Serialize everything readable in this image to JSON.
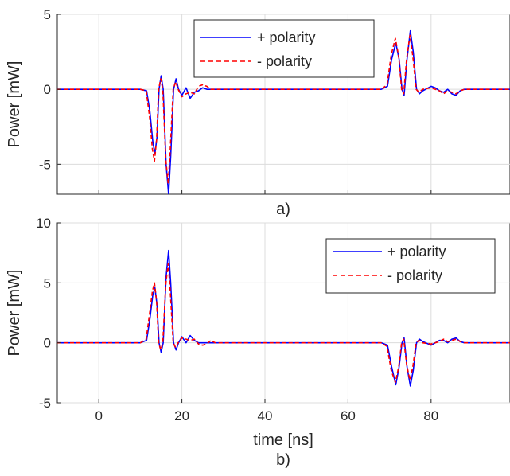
{
  "chart_data": [
    {
      "type": "line",
      "panel_label": "a)",
      "ylabel": "Power [mW]",
      "xlabel": "",
      "xlim": [
        -10,
        99
      ],
      "ylim": [
        -7,
        5
      ],
      "xticks": [
        0,
        20,
        40,
        60,
        80
      ],
      "yticks": [
        -5,
        0,
        5
      ],
      "grid": true,
      "legend": "top-center",
      "series": [
        {
          "name": "+ polarity",
          "color": "#0000ff",
          "style": "solid",
          "points": [
            [
              -10,
              0
            ],
            [
              10,
              0
            ],
            [
              11.5,
              -0.1
            ],
            [
              12.3,
              -1.5
            ],
            [
              13,
              -3.5
            ],
            [
              13.5,
              -4.3
            ],
            [
              14,
              -3.2
            ],
            [
              14.5,
              0
            ],
            [
              15,
              0.9
            ],
            [
              15.5,
              0
            ],
            [
              16.2,
              -5
            ],
            [
              16.8,
              -7
            ],
            [
              17.3,
              -4.5
            ],
            [
              18,
              0
            ],
            [
              18.6,
              0.7
            ],
            [
              19.2,
              0
            ],
            [
              20,
              -0.4
            ],
            [
              21,
              0.1
            ],
            [
              22,
              -0.6
            ],
            [
              23,
              -0.2
            ],
            [
              24,
              -0.1
            ],
            [
              25,
              0.1
            ],
            [
              26,
              0
            ],
            [
              30,
              0
            ],
            [
              66,
              0
            ],
            [
              68,
              0
            ],
            [
              69.5,
              0.2
            ],
            [
              70.5,
              2
            ],
            [
              71.5,
              3.1
            ],
            [
              72.3,
              2
            ],
            [
              73,
              0
            ],
            [
              73.5,
              -0.4
            ],
            [
              74.2,
              2
            ],
            [
              75,
              3.9
            ],
            [
              75.7,
              2.5
            ],
            [
              76.5,
              0
            ],
            [
              77.2,
              -0.3
            ],
            [
              78,
              -0.1
            ],
            [
              80,
              0.2
            ],
            [
              81,
              0.1
            ],
            [
              82,
              -0.1
            ],
            [
              83,
              -0.2
            ],
            [
              84,
              0
            ],
            [
              85,
              -0.3
            ],
            [
              86,
              -0.4
            ],
            [
              87,
              -0.1
            ],
            [
              88,
              0
            ],
            [
              99,
              0
            ]
          ]
        },
        {
          "name": "- polarity",
          "color": "#ff0000",
          "style": "dashed",
          "points": [
            [
              -10,
              0
            ],
            [
              10,
              0
            ],
            [
              11.4,
              -0.1
            ],
            [
              12.2,
              -1.8
            ],
            [
              12.9,
              -4
            ],
            [
              13.4,
              -4.8
            ],
            [
              13.9,
              -3.4
            ],
            [
              14.4,
              0
            ],
            [
              14.9,
              0.7
            ],
            [
              15.4,
              0
            ],
            [
              16.1,
              -4.6
            ],
            [
              16.7,
              -6.3
            ],
            [
              17.2,
              -4
            ],
            [
              17.9,
              0
            ],
            [
              18.5,
              0.5
            ],
            [
              19.1,
              0
            ],
            [
              20,
              -0.5
            ],
            [
              21,
              -0.3
            ],
            [
              22,
              -0.2
            ],
            [
              23,
              -0.3
            ],
            [
              24,
              0.2
            ],
            [
              25,
              0.3
            ],
            [
              26,
              0.2
            ],
            [
              27,
              0
            ],
            [
              30,
              0
            ],
            [
              66,
              0
            ],
            [
              68,
              0
            ],
            [
              69.4,
              0.3
            ],
            [
              70.4,
              2.3
            ],
            [
              71.4,
              3.4
            ],
            [
              72.2,
              2.2
            ],
            [
              72.9,
              0
            ],
            [
              73.4,
              -0.3
            ],
            [
              74.1,
              2
            ],
            [
              74.9,
              3.6
            ],
            [
              75.6,
              2.2
            ],
            [
              76.4,
              0
            ],
            [
              77.1,
              -0.2
            ],
            [
              78,
              0
            ],
            [
              80,
              0.1
            ],
            [
              81,
              0
            ],
            [
              82,
              -0.1
            ],
            [
              83,
              -0.3
            ],
            [
              84,
              -0.1
            ],
            [
              85,
              -0.2
            ],
            [
              86,
              -0.3
            ],
            [
              87,
              -0.1
            ],
            [
              88,
              0
            ],
            [
              99,
              0
            ]
          ]
        }
      ]
    },
    {
      "type": "line",
      "panel_label": "b)",
      "ylabel": "Power [mW]",
      "xlabel": "time [ns]",
      "xlim": [
        -10,
        99
      ],
      "ylim": [
        -5,
        10
      ],
      "xticks": [
        0,
        20,
        40,
        60,
        80
      ],
      "yticks": [
        -5,
        0,
        5,
        10
      ],
      "grid": true,
      "legend": "top-right",
      "series": [
        {
          "name": "+ polarity",
          "color": "#0000ff",
          "style": "solid",
          "points": [
            [
              -10,
              0
            ],
            [
              10,
              0
            ],
            [
              11.5,
              0.2
            ],
            [
              12.3,
              2
            ],
            [
              13,
              4
            ],
            [
              13.5,
              4.6
            ],
            [
              14,
              3.2
            ],
            [
              14.5,
              0
            ],
            [
              15,
              -0.8
            ],
            [
              15.5,
              0
            ],
            [
              16.2,
              5.5
            ],
            [
              16.8,
              7.7
            ],
            [
              17.3,
              5
            ],
            [
              18,
              0
            ],
            [
              18.6,
              -0.6
            ],
            [
              19.2,
              0
            ],
            [
              20,
              0.5
            ],
            [
              21,
              0
            ],
            [
              22,
              0.6
            ],
            [
              23,
              0.2
            ],
            [
              24,
              0
            ],
            [
              30,
              0
            ],
            [
              66,
              0
            ],
            [
              68,
              0
            ],
            [
              69.5,
              -0.2
            ],
            [
              70.5,
              -2
            ],
            [
              71.5,
              -3.5
            ],
            [
              72.3,
              -2
            ],
            [
              73,
              0
            ],
            [
              73.5,
              0.4
            ],
            [
              74.2,
              -2
            ],
            [
              75,
              -3.6
            ],
            [
              75.7,
              -2.3
            ],
            [
              76.5,
              0
            ],
            [
              77.2,
              0.3
            ],
            [
              78,
              0.1
            ],
            [
              80,
              -0.2
            ],
            [
              81,
              0
            ],
            [
              82,
              0.2
            ],
            [
              83,
              0.2
            ],
            [
              84,
              0
            ],
            [
              85,
              0.3
            ],
            [
              86,
              0.4
            ],
            [
              87,
              0.1
            ],
            [
              88,
              0
            ],
            [
              99,
              0
            ]
          ]
        },
        {
          "name": "- polarity",
          "color": "#ff0000",
          "style": "dashed",
          "points": [
            [
              -10,
              0
            ],
            [
              10,
              0
            ],
            [
              11.4,
              0.3
            ],
            [
              12.2,
              2.4
            ],
            [
              12.9,
              4.3
            ],
            [
              13.4,
              5
            ],
            [
              13.9,
              3.5
            ],
            [
              14.4,
              0
            ],
            [
              14.9,
              -0.6
            ],
            [
              15.4,
              0
            ],
            [
              16.1,
              4.8
            ],
            [
              16.7,
              6.6
            ],
            [
              17.2,
              4.3
            ],
            [
              17.9,
              0
            ],
            [
              18.5,
              -0.4
            ],
            [
              19.1,
              0
            ],
            [
              20,
              0.4
            ],
            [
              21,
              0.3
            ],
            [
              22,
              0.2
            ],
            [
              23,
              0.3
            ],
            [
              24,
              -0.1
            ],
            [
              25,
              -0.2
            ],
            [
              26,
              -0.1
            ],
            [
              27,
              0.2
            ],
            [
              28,
              0
            ],
            [
              30,
              0
            ],
            [
              66,
              0
            ],
            [
              68,
              0
            ],
            [
              69.4,
              -0.3
            ],
            [
              70.4,
              -2.3
            ],
            [
              71.4,
              -3.3
            ],
            [
              72.2,
              -2
            ],
            [
              72.9,
              0
            ],
            [
              73.4,
              0.3
            ],
            [
              74.1,
              -1.8
            ],
            [
              74.9,
              -3.1
            ],
            [
              75.6,
              -2
            ],
            [
              76.4,
              0
            ],
            [
              77.1,
              0.2
            ],
            [
              78,
              0
            ],
            [
              80,
              -0.1
            ],
            [
              81,
              0
            ],
            [
              82,
              0.1
            ],
            [
              83,
              0.3
            ],
            [
              84,
              0.1
            ],
            [
              85,
              0.2
            ],
            [
              86,
              0.3
            ],
            [
              87,
              0.1
            ],
            [
              88,
              0
            ],
            [
              99,
              0
            ]
          ]
        }
      ]
    }
  ]
}
